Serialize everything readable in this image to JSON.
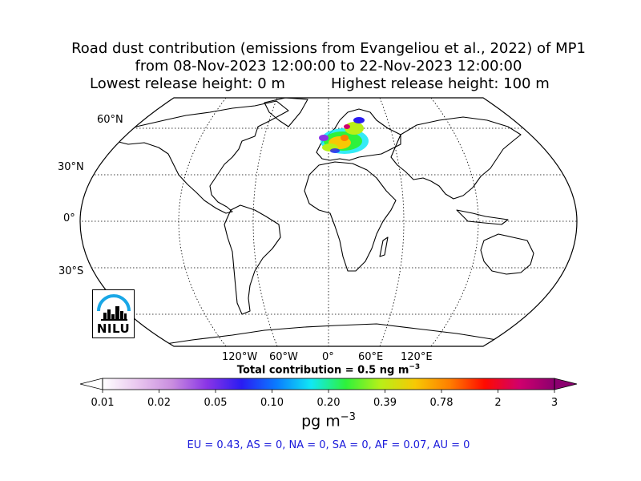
{
  "title": {
    "line1": "Road dust contribution (emissions from Evangeliou et al., 2022) of MP1",
    "line2": "from 08-Nov-2023 12:00:00 to 22-Nov-2023 12:00:00",
    "line3_left": "Lowest release height: 0 m",
    "line3_right": "Highest release height: 100 m"
  },
  "map": {
    "projection": "Robinson",
    "lat_labels": [
      "60°N",
      "30°N",
      "0°",
      "30°S"
    ],
    "lon_labels": [
      "120°W",
      "60°W",
      "0°",
      "60°E",
      "120°E"
    ],
    "plume_region": "Northern and central Europe"
  },
  "logo": {
    "text": "NILU"
  },
  "total": "Total contribution = 0.5 ng m",
  "total_exp": "−3",
  "colorbar": {
    "ticks": [
      "0.01",
      "0.02",
      "0.05",
      "0.10",
      "0.20",
      "0.39",
      "0.78",
      "2",
      "3"
    ],
    "units_base": "pg m",
    "units_exp": "−3"
  },
  "regions": "EU = 0.43,  AS = 0,  NA = 0,  SA = 0,  AF = 0.07,  AU = 0",
  "colors": {
    "colormap": [
      "#ffffff",
      "#e9c7ef",
      "#c98ddf",
      "#8a35e6",
      "#2a1cf2",
      "#0a7bff",
      "#10e8f4",
      "#2ef23a",
      "#b8ef18",
      "#f7c804",
      "#ff7d00",
      "#ff0a00",
      "#d0006d",
      "#8b006f"
    ],
    "regions_text": "#1a1adb"
  }
}
